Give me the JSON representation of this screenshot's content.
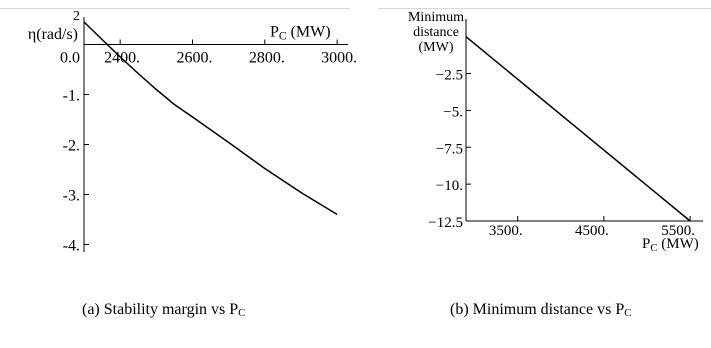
{
  "figure": {
    "captions": [
      {
        "text": "(a) Stability margin vs P",
        "sub": "C"
      },
      {
        "text": "(b) Minimum distance vs P",
        "sub": "C"
      }
    ]
  },
  "chart_data": [
    {
      "type": "line",
      "ylabel": "η(rad/s)",
      "xlabel": "P",
      "xlabel_sub": "C",
      "xlabel_unit": " (MW)",
      "xlim": [
        2300,
        3030
      ],
      "ylim": [
        -4.15,
        0.55
      ],
      "xticks": [
        2400,
        2600,
        2800,
        3000
      ],
      "xtick_labels": [
        "2400.",
        "2600.",
        "2800.",
        "3000."
      ],
      "yticks": [
        0,
        -1,
        -2,
        -3,
        -4
      ],
      "ytick_labels": [
        "0.0",
        "-1.",
        "-2.",
        "-3.",
        "-4."
      ],
      "top_label": "2",
      "series": [
        {
          "x": [
            2300,
            2350,
            2400,
            2450,
            2500,
            2550,
            2600,
            2700,
            2800,
            2900,
            3000
          ],
          "y": [
            0.45,
            0.1,
            -0.25,
            -0.58,
            -0.9,
            -1.2,
            -1.45,
            -1.96,
            -2.48,
            -2.96,
            -3.4
          ]
        }
      ]
    },
    {
      "type": "line",
      "ylabel_lines": [
        "Minimum",
        "distance",
        "(MW)"
      ],
      "xlabel": "P",
      "xlabel_sub": "C",
      "xlabel_unit": " (MW)",
      "xlim": [
        2900,
        5650
      ],
      "ylim": [
        -12.5,
        1.2
      ],
      "xticks": [
        3500,
        4500,
        5500
      ],
      "xtick_labels": [
        "3500.",
        "4500.",
        "5500."
      ],
      "yticks": [
        -2.5,
        -5,
        -7.5,
        -10,
        -12.5
      ],
      "ytick_labels": [
        "−2.5",
        "−5.",
        "−7.5",
        "−10.",
        "−12.5"
      ],
      "series": [
        {
          "x": [
            2900,
            5500
          ],
          "y": [
            0,
            -12.5
          ]
        }
      ]
    }
  ]
}
